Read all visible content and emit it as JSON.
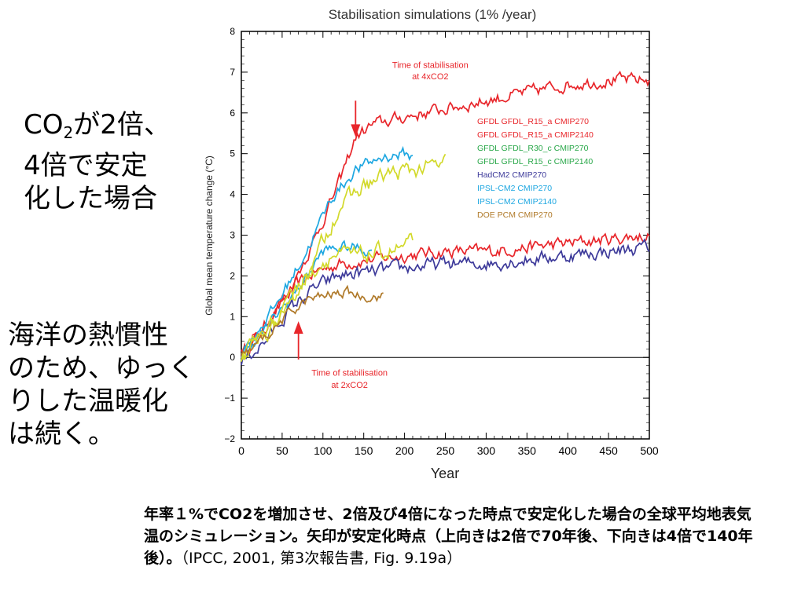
{
  "side_note_1": {
    "line1_prefix": "CO",
    "line1_sub": "2",
    "line1_suffix": "が2倍、",
    "line2": "4倍で安定",
    "line3": "化した場合"
  },
  "side_note_2": {
    "line1": "海洋の熱慣性",
    "line2": "のため、ゆっく",
    "line3": "りした温暖化",
    "line4": "は続く。"
  },
  "caption": {
    "bold_part": "年率１%でCO2を増加させ、2倍及び4倍になった時点で安定化した場合の全球平均地表気温のシミュレーション。矢印が安定化時点（上向きは2倍で70年後、下向きは4倍で140年後）。",
    "normal_part": "（IPCC, 2001, 第3次報告書, Fig. 9.19a）"
  },
  "chart_data": {
    "type": "line",
    "title": "Stabilisation simulations (1% /year)",
    "xlabel": "Year",
    "ylabel": "Global mean temperature change (°C)",
    "xlim": [
      0,
      500
    ],
    "ylim": [
      -2,
      8
    ],
    "xticks": [
      0,
      50,
      100,
      150,
      200,
      250,
      300,
      350,
      400,
      450,
      500
    ],
    "yticks": [
      -2,
      -1,
      0,
      1,
      2,
      3,
      4,
      5,
      6,
      7,
      8
    ],
    "ytick_labels": [
      "−2",
      "−1",
      "0",
      "1",
      "2",
      "3",
      "4",
      "5",
      "6",
      "7",
      "8"
    ],
    "zero_line": true,
    "legend_position": "top-right",
    "legend": [
      {
        "label": "GFDL    GFDL_R15_a CMIP270",
        "color": "#e8262b"
      },
      {
        "label": "GFDL    GFDL_R15_a CMIP2140",
        "color": "#e8262b"
      },
      {
        "label": "GFDL    GFDL_R30_c CMIP270",
        "color": "#2aa84a"
      },
      {
        "label": "GFDL    GFDL_R15_c CMIP2140",
        "color": "#2aa84a"
      },
      {
        "label": "HadCM2 CMIP270",
        "color": "#3d3a9a"
      },
      {
        "label": "IPSL-CM2 CMIP270",
        "color": "#1ea7e1"
      },
      {
        "label": "IPSL-CM2 CMIP2140",
        "color": "#1ea7e1"
      },
      {
        "label": "DOE PCM CMIP270",
        "color": "#b07a2a"
      }
    ],
    "series": [
      {
        "color": "#e8262b",
        "noise": 0.13,
        "points": [
          [
            0,
            0.1
          ],
          [
            20,
            0.5
          ],
          [
            40,
            1.1
          ],
          [
            70,
            1.8
          ],
          [
            90,
            2.1
          ],
          [
            120,
            2.3
          ],
          [
            160,
            2.4
          ],
          [
            200,
            2.5
          ],
          [
            250,
            2.6
          ],
          [
            300,
            2.6
          ],
          [
            350,
            2.7
          ],
          [
            400,
            2.8
          ],
          [
            450,
            2.9
          ],
          [
            500,
            3.0
          ]
        ]
      },
      {
        "color": "#e8262b",
        "noise": 0.13,
        "points": [
          [
            0,
            0.1
          ],
          [
            30,
            0.8
          ],
          [
            60,
            1.7
          ],
          [
            90,
            2.9
          ],
          [
            120,
            4.3
          ],
          [
            140,
            5.4
          ],
          [
            160,
            5.7
          ],
          [
            200,
            5.9
          ],
          [
            250,
            6.1
          ],
          [
            300,
            6.3
          ],
          [
            350,
            6.5
          ],
          [
            400,
            6.7
          ],
          [
            450,
            6.8
          ],
          [
            500,
            6.8
          ]
        ]
      },
      {
        "color": "#3d3a9a",
        "noise": 0.14,
        "points": [
          [
            0,
            -0.1
          ],
          [
            30,
            0.4
          ],
          [
            60,
            1.2
          ],
          [
            90,
            1.7
          ],
          [
            120,
            2.0
          ],
          [
            160,
            2.1
          ],
          [
            200,
            2.2
          ],
          [
            250,
            2.3
          ],
          [
            300,
            2.3
          ],
          [
            350,
            2.4
          ],
          [
            400,
            2.5
          ],
          [
            450,
            2.6
          ],
          [
            500,
            2.7
          ]
        ]
      },
      {
        "color": "#1ea7e1",
        "noise": 0.12,
        "points": [
          [
            0,
            0.1
          ],
          [
            30,
            0.7
          ],
          [
            70,
            1.7
          ],
          [
            100,
            2.6
          ],
          [
            120,
            2.7
          ],
          [
            140,
            2.7
          ],
          [
            160,
            2.6
          ]
        ]
      },
      {
        "color": "#1ea7e1",
        "noise": 0.12,
        "points": [
          [
            0,
            0.1
          ],
          [
            40,
            1.2
          ],
          [
            80,
            2.6
          ],
          [
            110,
            3.9
          ],
          [
            140,
            4.6
          ],
          [
            170,
            4.9
          ],
          [
            200,
            5.0
          ],
          [
            210,
            4.9
          ]
        ]
      },
      {
        "color": "#d2d92a",
        "noise": 0.17,
        "points": [
          [
            0,
            0.0
          ],
          [
            40,
            0.9
          ],
          [
            80,
            2.0
          ],
          [
            110,
            2.5
          ],
          [
            150,
            2.5
          ],
          [
            180,
            2.6
          ],
          [
            200,
            2.7
          ],
          [
            210,
            2.8
          ]
        ]
      },
      {
        "color": "#d2d92a",
        "noise": 0.17,
        "points": [
          [
            0,
            0.0
          ],
          [
            50,
            1.0
          ],
          [
            90,
            2.4
          ],
          [
            120,
            3.7
          ],
          [
            150,
            4.2
          ],
          [
            180,
            4.5
          ],
          [
            210,
            4.6
          ],
          [
            240,
            4.7
          ],
          [
            250,
            4.8
          ]
        ]
      },
      {
        "color": "#b07a2a",
        "noise": 0.1,
        "points": [
          [
            0,
            0.0
          ],
          [
            30,
            0.5
          ],
          [
            60,
            1.1
          ],
          [
            80,
            1.4
          ],
          [
            100,
            1.5
          ],
          [
            130,
            1.6
          ],
          [
            150,
            1.5
          ],
          [
            175,
            1.5
          ]
        ]
      }
    ],
    "annotations": [
      {
        "id": "arrow-2x",
        "text_line1": "Time of stabilisation",
        "text_line2": "at 2xCO2",
        "arrow_year": 70,
        "direction": "up",
        "color": "#e8262b"
      },
      {
        "id": "arrow-4x",
        "text_line1": "Time of stabilisation",
        "text_line2": "at 4xCO2",
        "arrow_year": 140,
        "direction": "down",
        "color": "#e8262b"
      }
    ]
  }
}
